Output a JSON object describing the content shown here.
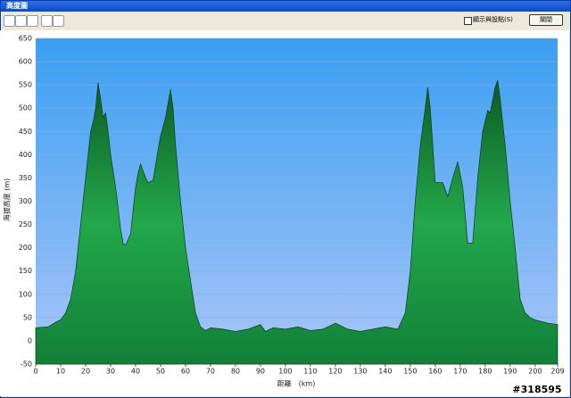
{
  "window": {
    "title": "高度圖",
    "checkbox_label": "顯示與設點(S)",
    "button": "關閉",
    "watermark": "#318595"
  },
  "chart_data": {
    "type": "area",
    "x_label": "距離　(km)",
    "y_label": "海拔高度 (m)",
    "x": [
      0,
      5,
      8,
      10,
      12,
      14,
      16,
      18,
      20,
      22,
      23,
      24,
      25,
      26,
      27,
      28,
      29,
      30,
      32,
      34,
      35,
      36,
      38,
      40,
      41,
      42,
      43,
      44,
      45,
      47,
      49,
      50,
      52,
      54,
      55,
      56,
      58,
      60,
      62,
      64,
      66,
      68,
      70,
      75,
      80,
      85,
      90,
      92,
      95,
      100,
      105,
      110,
      115,
      120,
      125,
      130,
      135,
      140,
      145,
      148,
      150,
      152,
      154,
      156,
      157,
      158,
      160,
      163,
      165,
      167,
      169,
      171,
      173,
      175,
      177,
      179,
      181,
      182,
      184,
      185,
      186,
      188,
      190,
      192,
      194,
      196,
      198,
      200,
      205,
      209
    ],
    "values": [
      28,
      30,
      40,
      45,
      60,
      90,
      150,
      250,
      350,
      450,
      470,
      500,
      555,
      520,
      480,
      490,
      450,
      400,
      330,
      240,
      210,
      205,
      230,
      330,
      360,
      380,
      365,
      350,
      340,
      345,
      410,
      440,
      480,
      540,
      500,
      420,
      300,
      200,
      130,
      60,
      30,
      22,
      28,
      25,
      20,
      25,
      35,
      20,
      28,
      25,
      30,
      22,
      25,
      38,
      25,
      20,
      25,
      30,
      25,
      60,
      150,
      300,
      420,
      500,
      545,
      500,
      340,
      340,
      310,
      350,
      385,
      330,
      210,
      210,
      350,
      450,
      495,
      490,
      545,
      560,
      520,
      420,
      300,
      200,
      90,
      60,
      50,
      45,
      38,
      35
    ],
    "color": "#1e9e44",
    "xlim": [
      0,
      209
    ],
    "ylim": [
      -50,
      650
    ],
    "xticks": [
      0,
      10,
      20,
      30,
      40,
      50,
      60,
      70,
      80,
      90,
      100,
      110,
      120,
      130,
      140,
      150,
      160,
      170,
      180,
      190,
      200,
      209
    ],
    "yticks": [
      -50,
      0,
      50,
      100,
      150,
      200,
      250,
      300,
      350,
      400,
      450,
      500,
      550,
      600,
      650
    ],
    "grid": true
  }
}
